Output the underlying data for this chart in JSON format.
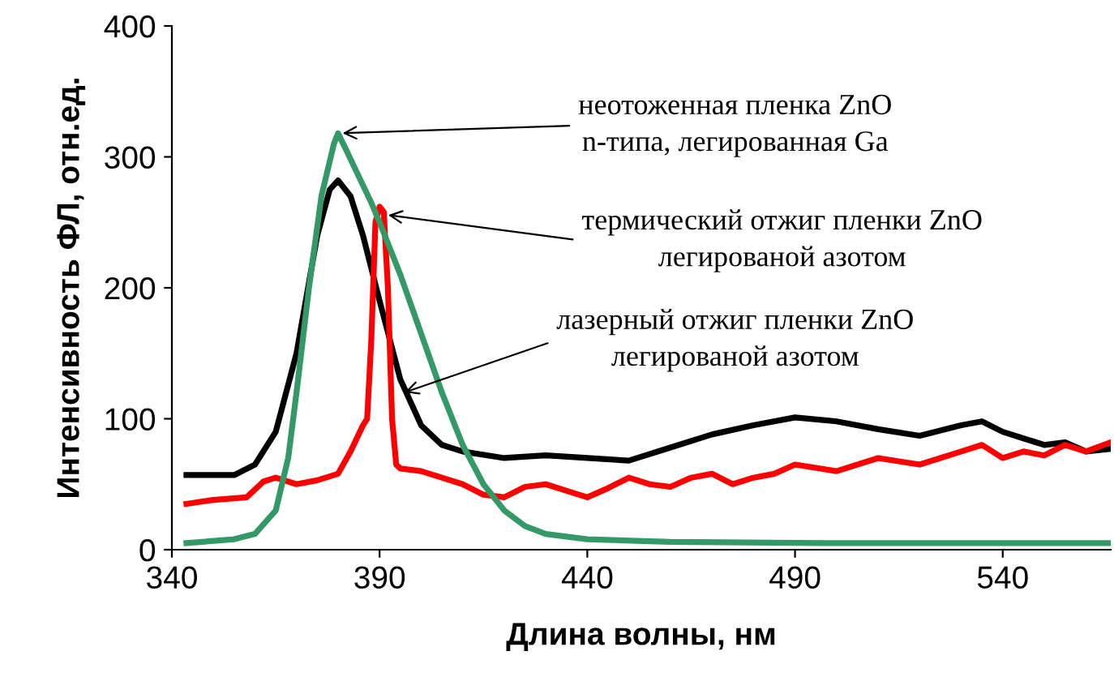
{
  "chart_data": {
    "type": "line",
    "xlabel": "Длина волны, нм",
    "ylabel": "Интенсивность ФЛ, отн.ед.",
    "xlim": [
      340,
      566
    ],
    "xticks": [
      340,
      390,
      440,
      490,
      540
    ],
    "ylim": [
      0,
      400
    ],
    "yticks": [
      0,
      100,
      200,
      300,
      400
    ],
    "grid": false,
    "legend": false,
    "series": [
      {
        "color": "#000000",
        "x": [
          343.5,
          355,
          360,
          365,
          370,
          375,
          378,
          380,
          383,
          386,
          390,
          395,
          400,
          405,
          410,
          420,
          430,
          440,
          450,
          460,
          470,
          480,
          490,
          500,
          510,
          520,
          530,
          535,
          540,
          545,
          550,
          555,
          560,
          566
        ],
        "values": [
          57,
          57,
          65,
          90,
          150,
          240,
          275,
          282,
          270,
          240,
          190,
          130,
          95,
          80,
          75,
          70,
          72,
          70,
          68,
          78,
          88,
          95,
          101,
          98,
          92,
          87,
          95,
          98,
          90,
          85,
          80,
          82,
          75,
          77
        ]
      },
      {
        "color": "#ff0000",
        "x": [
          343.5,
          350,
          358,
          362,
          365,
          370,
          375,
          380,
          383,
          386,
          387,
          388,
          389,
          390,
          391,
          392,
          393,
          394,
          395,
          400,
          405,
          410,
          415,
          420,
          425,
          430,
          435,
          440,
          445,
          450,
          455,
          460,
          465,
          470,
          475,
          480,
          485,
          490,
          500,
          510,
          520,
          530,
          535,
          540,
          545,
          550,
          555,
          560,
          566
        ],
        "values": [
          35,
          38,
          40,
          52,
          55,
          50,
          53,
          58,
          75,
          95,
          100,
          160,
          250,
          262,
          258,
          200,
          100,
          65,
          62,
          60,
          55,
          50,
          42,
          40,
          48,
          50,
          45,
          40,
          47,
          55,
          50,
          48,
          55,
          58,
          50,
          55,
          58,
          65,
          60,
          70,
          65,
          75,
          80,
          70,
          75,
          72,
          80,
          75,
          82
        ]
      },
      {
        "color": "#339966",
        "x": [
          343.5,
          355,
          360,
          365,
          368,
          370,
          373,
          376,
          379,
          380,
          382,
          385,
          388,
          390,
          395,
          400,
          405,
          410,
          415,
          420,
          425,
          430,
          440,
          460,
          500,
          540,
          566
        ],
        "values": [
          5,
          8,
          12,
          30,
          70,
          120,
          200,
          270,
          310,
          318,
          305,
          285,
          265,
          250,
          210,
          165,
          120,
          80,
          50,
          30,
          18,
          12,
          8,
          6,
          5,
          5,
          5
        ]
      }
    ],
    "annotations": [
      {
        "text": "неотоженная пленка ZnO\nn-типа, легированная Ga",
        "x": 380,
        "y": 318
      },
      {
        "text": "термический отжиг пленки ZnO\nлегированой азотом",
        "x": 391,
        "y": 256
      },
      {
        "text": "лазерный отжиг пленки ZnO\nлегированой азотом",
        "x": 395,
        "y": 119
      }
    ]
  }
}
